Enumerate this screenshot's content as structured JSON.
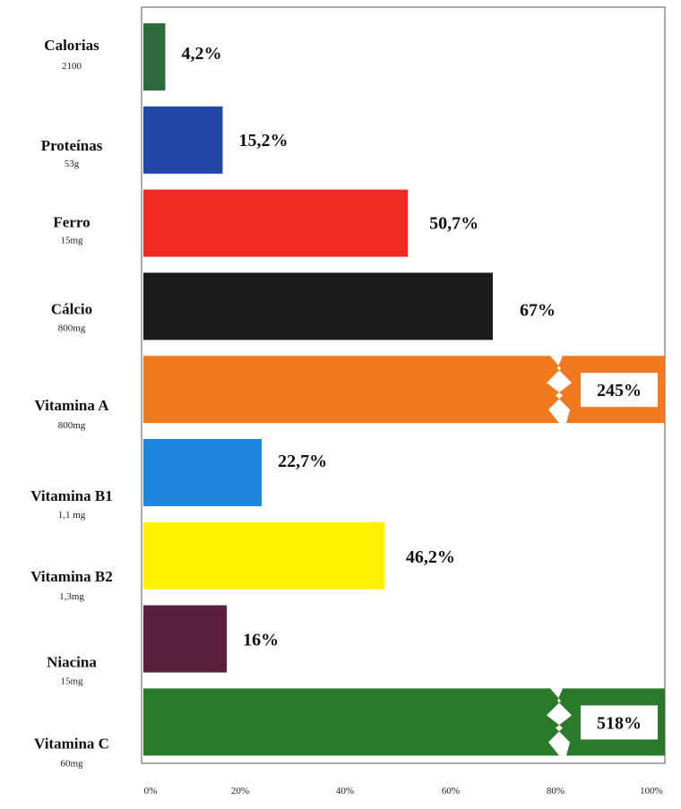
{
  "chart_data": {
    "type": "bar",
    "orientation": "horizontal",
    "categories": [
      "Calorias",
      "Proteínas",
      "Ferro",
      "Cálcio",
      "Vitamina A",
      "Vitamina B1",
      "Vitamina B2",
      "Niacina",
      "Vitamina C"
    ],
    "units": [
      "2100",
      "53g",
      "15mg",
      "800mg",
      "800mg",
      "1,1 mg",
      "1,3mg",
      "15mg",
      "60mg"
    ],
    "values": [
      4.2,
      15.2,
      50.7,
      67,
      245,
      22.7,
      46.2,
      16,
      518
    ],
    "value_labels": [
      "4,2%",
      "15,2%",
      "50,7%",
      "67%",
      "245%",
      "22,7%",
      "46,2%",
      "16%",
      "518%"
    ],
    "colors": [
      "#2e6b3c",
      "#1f45a6",
      "#ee2a22",
      "#1a1a1a",
      "#f27a1e",
      "#1f86e0",
      "#fff200",
      "#5a1f3a",
      "#2b7a2b"
    ],
    "broken_bars": [
      4,
      8
    ],
    "xlim": [
      0,
      100
    ],
    "x_ticks": [
      "0%",
      "20%",
      "40%",
      "60%",
      "80%",
      "100%"
    ],
    "title": "",
    "xlabel": "",
    "ylabel": ""
  }
}
